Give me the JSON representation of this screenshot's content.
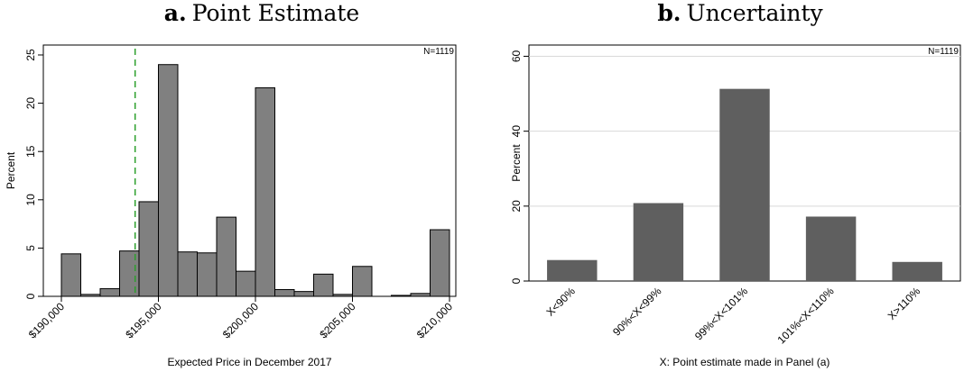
{
  "panels": {
    "a": {
      "letter": "a.",
      "title": "Point Estimate"
    },
    "b": {
      "letter": "b.",
      "title": "Uncertainty"
    }
  },
  "chart_data": [
    {
      "type": "bar",
      "subtype": "histogram",
      "title": "a. Point Estimate",
      "xlabel": "Expected Price in December 2017",
      "ylabel": "Percent",
      "annotation": "N=1119",
      "xlim": [
        190000,
        210000
      ],
      "ylim": [
        0,
        25
      ],
      "xticks": [
        190000,
        195000,
        200000,
        205000,
        210000
      ],
      "xtick_labels": [
        "$190,000",
        "$195,000",
        "$200,000",
        "$205,000",
        "$210,000"
      ],
      "yticks": [
        0,
        5,
        10,
        15,
        20,
        25
      ],
      "reference_line": {
        "x": 193800,
        "style": "dashed",
        "color": "#2ca02c"
      },
      "bar_color": "#808080",
      "bins": [
        {
          "x0": 190000,
          "x1": 191000,
          "value": 4.4
        },
        {
          "x0": 191000,
          "x1": 192000,
          "value": 0.2
        },
        {
          "x0": 192000,
          "x1": 193000,
          "value": 0.8
        },
        {
          "x0": 193000,
          "x1": 194000,
          "value": 4.7
        },
        {
          "x0": 194000,
          "x1": 195000,
          "value": 9.8
        },
        {
          "x0": 195000,
          "x1": 196000,
          "value": 24.0
        },
        {
          "x0": 196000,
          "x1": 197000,
          "value": 4.6
        },
        {
          "x0": 197000,
          "x1": 198000,
          "value": 4.5
        },
        {
          "x0": 198000,
          "x1": 199000,
          "value": 8.2
        },
        {
          "x0": 199000,
          "x1": 200000,
          "value": 2.6
        },
        {
          "x0": 200000,
          "x1": 201000,
          "value": 21.6
        },
        {
          "x0": 201000,
          "x1": 202000,
          "value": 0.7
        },
        {
          "x0": 202000,
          "x1": 203000,
          "value": 0.5
        },
        {
          "x0": 203000,
          "x1": 204000,
          "value": 2.3
        },
        {
          "x0": 204000,
          "x1": 205000,
          "value": 0.2
        },
        {
          "x0": 205000,
          "x1": 206000,
          "value": 3.1
        },
        {
          "x0": 206000,
          "x1": 207000,
          "value": 0.0
        },
        {
          "x0": 207000,
          "x1": 208000,
          "value": 0.1
        },
        {
          "x0": 208000,
          "x1": 209000,
          "value": 0.3
        },
        {
          "x0": 209000,
          "x1": 210000,
          "value": 6.9
        }
      ]
    },
    {
      "type": "bar",
      "title": "b. Uncertainty",
      "xlabel": "X: Point estimate made in Panel (a)",
      "ylabel": "Percent",
      "annotation": "N=1119",
      "ylim": [
        0,
        63
      ],
      "yticks": [
        0,
        20,
        40,
        60
      ],
      "grid": true,
      "bar_color": "#5f5f5f",
      "categories": [
        "X<90%",
        "90%<X<99%",
        "99%<X<101%",
        "101%<X<110%",
        "X>110%"
      ],
      "values": [
        5.6,
        20.8,
        51.3,
        17.2,
        5.1
      ]
    }
  ]
}
